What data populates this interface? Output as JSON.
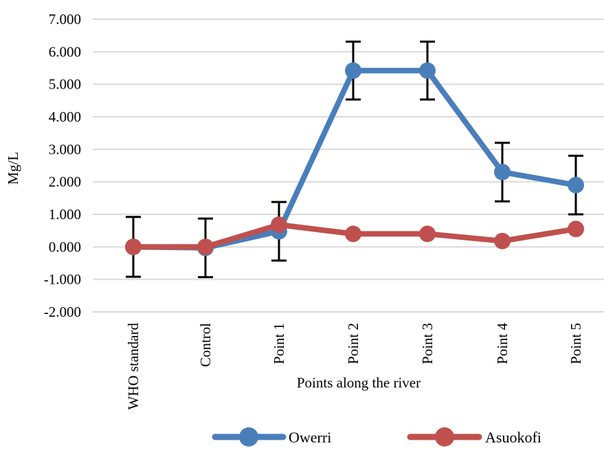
{
  "chart_data": {
    "type": "line",
    "title": "",
    "xlabel": "Points along the river",
    "ylabel": "Mg/L",
    "categories": [
      "WHO standard",
      "Control",
      "Point 1",
      "Point 2",
      "Point 3",
      "Point 4",
      "Point 5"
    ],
    "ylim": [
      -2,
      7
    ],
    "yticks": [
      -2,
      -1,
      0,
      1,
      2,
      3,
      4,
      5,
      6,
      7
    ],
    "ytick_labels": [
      "-2.000",
      "-1.000",
      "0.000",
      "1.000",
      "2.000",
      "3.000",
      "4.000",
      "5.000",
      "6.000",
      "7.000"
    ],
    "grid": "horizontal",
    "legend_position": "bottom",
    "series": [
      {
        "name": "Owerri",
        "color": "#4a7ebb",
        "values": [
          0.0,
          -0.03,
          0.48,
          5.42,
          5.42,
          2.3,
          1.9
        ],
        "error": [
          0.92,
          0.9,
          0.9,
          0.89,
          0.89,
          0.9,
          0.9
        ]
      },
      {
        "name": "Asuokofi",
        "color": "#c0504d",
        "values": [
          0.0,
          0.0,
          0.68,
          0.4,
          0.4,
          0.18,
          0.55
        ]
      }
    ]
  }
}
